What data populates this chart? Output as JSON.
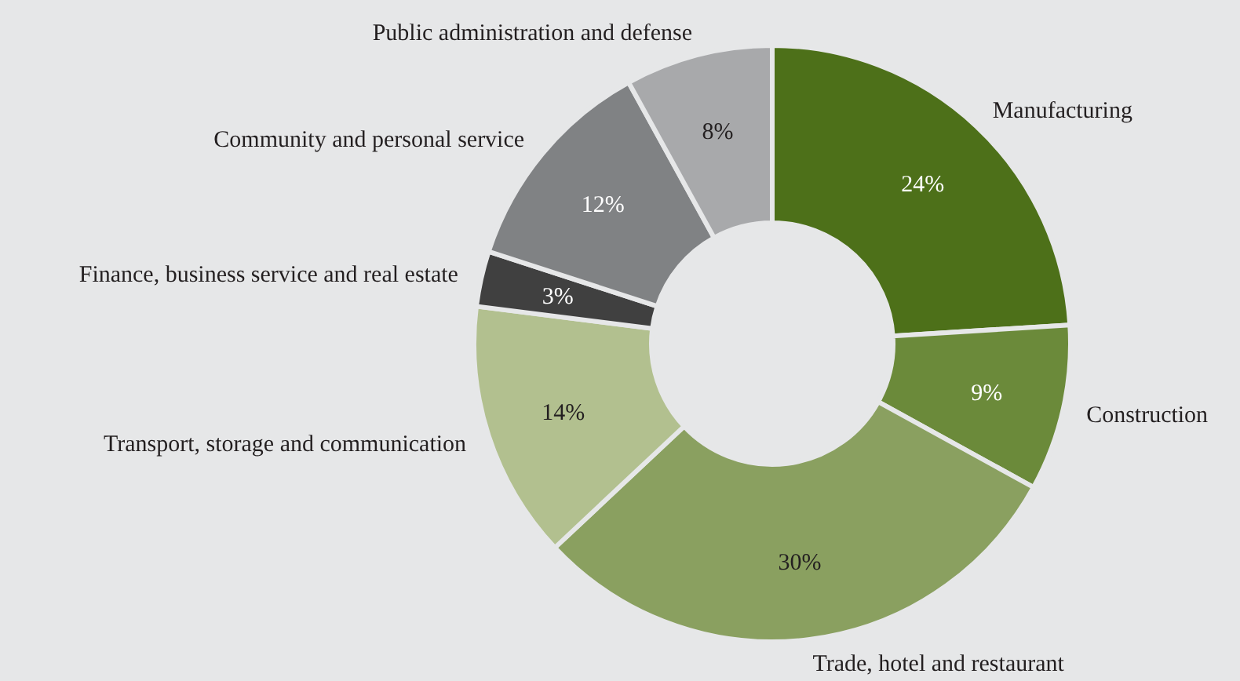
{
  "chart_data": {
    "type": "donut",
    "categories": [
      "Manufacturing",
      "Construction",
      "Trade, hotel and restaurant",
      "Transport, storage and communication",
      "Finance, business service and real estate",
      "Community and personal service",
      "Public administration and defense"
    ],
    "values": [
      24,
      9,
      30,
      14,
      3,
      12,
      8
    ],
    "value_labels": [
      "24%",
      "9%",
      "30%",
      "14%",
      "3%",
      "12%",
      "8%"
    ],
    "colors": [
      "#4d7019",
      "#6b8a3a",
      "#8aa060",
      "#b2c08f",
      "#404040",
      "#808284",
      "#a8a9ab"
    ]
  }
}
